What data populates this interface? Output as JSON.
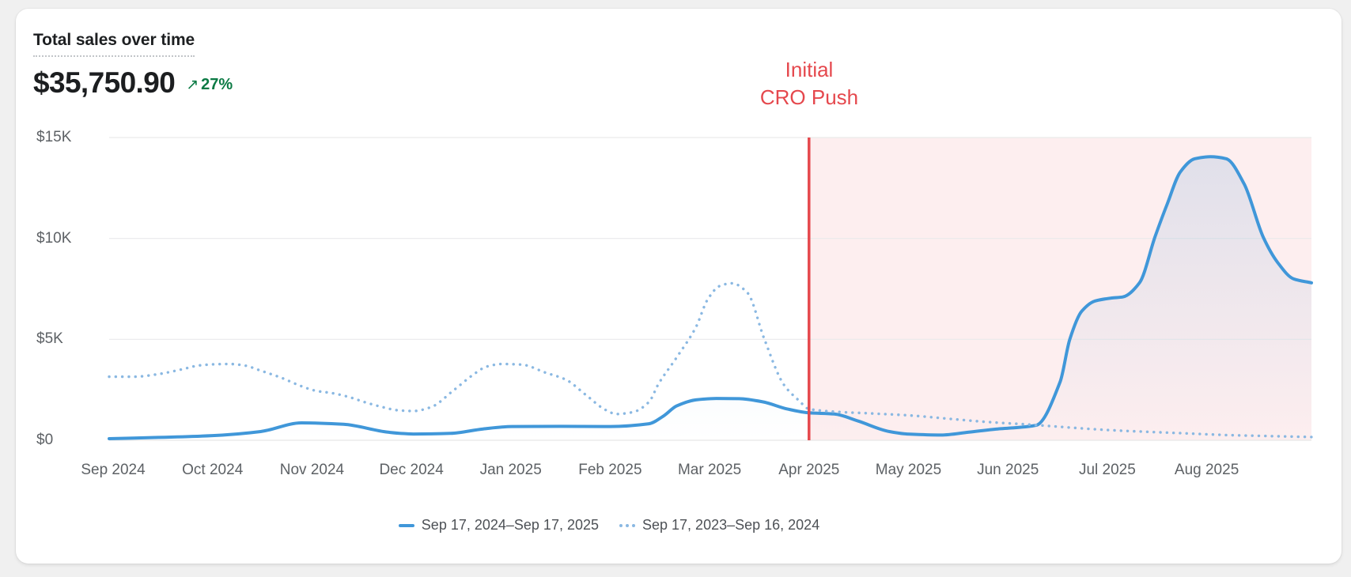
{
  "page": {
    "background_color": "#f0f0f0",
    "card_color": "#ffffff"
  },
  "header": {
    "title": "Total sales over time",
    "total_value": "$35,750.90",
    "delta_arrow": "↗",
    "delta_percent": "27%",
    "delta_color": "#0b7a44"
  },
  "chart_data": {
    "type": "line",
    "title": "Total sales over time",
    "grid": "horizontal",
    "legend_position": "bottom-center",
    "y_axis": {
      "min": 0,
      "max": 15000,
      "ticks": [
        {
          "value": 0,
          "label": "$0"
        },
        {
          "value": 5000,
          "label": "$5K"
        },
        {
          "value": 10000,
          "label": "$10K"
        },
        {
          "value": 15000,
          "label": "$15K"
        }
      ]
    },
    "x_axis": {
      "labels": [
        {
          "t": 0.0033,
          "label": "Sep 2024"
        },
        {
          "t": 0.086,
          "label": "Oct 2024"
        },
        {
          "t": 0.1687,
          "label": "Nov 2024"
        },
        {
          "t": 0.2514,
          "label": "Dec 2024"
        },
        {
          "t": 0.334,
          "label": "Jan 2025"
        },
        {
          "t": 0.4167,
          "label": "Feb 2025"
        },
        {
          "t": 0.4994,
          "label": "Mar 2025"
        },
        {
          "t": 0.5821,
          "label": "Apr 2025"
        },
        {
          "t": 0.6648,
          "label": "May 2025"
        },
        {
          "t": 0.7475,
          "label": "Jun 2025"
        },
        {
          "t": 0.8302,
          "label": "Jul 2025"
        },
        {
          "t": 0.9129,
          "label": "Aug 2025"
        }
      ]
    },
    "series": [
      {
        "name": "Sep 17, 2024–Sep 17, 2025",
        "style": "solid",
        "color": "#4097d9",
        "area_gradient": true,
        "points": [
          [
            0.0,
            80
          ],
          [
            0.041,
            140
          ],
          [
            0.086,
            230
          ],
          [
            0.126,
            430
          ],
          [
            0.16,
            860
          ],
          [
            0.195,
            790
          ],
          [
            0.232,
            400
          ],
          [
            0.253,
            310
          ],
          [
            0.284,
            340
          ],
          [
            0.311,
            560
          ],
          [
            0.335,
            680
          ],
          [
            0.376,
            690
          ],
          [
            0.417,
            680
          ],
          [
            0.449,
            820
          ],
          [
            0.461,
            1200
          ],
          [
            0.472,
            1700
          ],
          [
            0.488,
            2000
          ],
          [
            0.505,
            2070
          ],
          [
            0.524,
            2060
          ],
          [
            0.544,
            1900
          ],
          [
            0.564,
            1550
          ],
          [
            0.582,
            1360
          ],
          [
            0.603,
            1300
          ],
          [
            0.623,
            950
          ],
          [
            0.649,
            430
          ],
          [
            0.666,
            300
          ],
          [
            0.692,
            260
          ],
          [
            0.715,
            400
          ],
          [
            0.739,
            560
          ],
          [
            0.751,
            610
          ],
          [
            0.771,
            740
          ],
          [
            0.791,
            2900
          ],
          [
            0.799,
            5000
          ],
          [
            0.809,
            6400
          ],
          [
            0.82,
            6900
          ],
          [
            0.834,
            7050
          ],
          [
            0.843,
            7100
          ],
          [
            0.857,
            7800
          ],
          [
            0.87,
            10100
          ],
          [
            0.88,
            11700
          ],
          [
            0.891,
            13300
          ],
          [
            0.903,
            13950
          ],
          [
            0.916,
            14050
          ],
          [
            0.929,
            13950
          ],
          [
            0.944,
            12700
          ],
          [
            0.96,
            10050
          ],
          [
            0.972,
            8800
          ],
          [
            0.985,
            8000
          ],
          [
            1.0,
            7800
          ]
        ]
      },
      {
        "name": "Sep 17, 2023–Sep 16, 2024",
        "style": "dotted",
        "color": "#8ab8e2",
        "area_gradient": false,
        "points": [
          [
            0.0,
            3150
          ],
          [
            0.021,
            3150
          ],
          [
            0.041,
            3280
          ],
          [
            0.061,
            3520
          ],
          [
            0.074,
            3700
          ],
          [
            0.086,
            3760
          ],
          [
            0.1,
            3780
          ],
          [
            0.113,
            3700
          ],
          [
            0.126,
            3450
          ],
          [
            0.143,
            3100
          ],
          [
            0.159,
            2700
          ],
          [
            0.172,
            2450
          ],
          [
            0.186,
            2330
          ],
          [
            0.199,
            2150
          ],
          [
            0.212,
            1900
          ],
          [
            0.225,
            1680
          ],
          [
            0.241,
            1480
          ],
          [
            0.253,
            1450
          ],
          [
            0.268,
            1650
          ],
          [
            0.286,
            2450
          ],
          [
            0.304,
            3300
          ],
          [
            0.314,
            3650
          ],
          [
            0.327,
            3780
          ],
          [
            0.343,
            3750
          ],
          [
            0.363,
            3350
          ],
          [
            0.38,
            3000
          ],
          [
            0.396,
            2270
          ],
          [
            0.413,
            1500
          ],
          [
            0.422,
            1300
          ],
          [
            0.436,
            1400
          ],
          [
            0.449,
            1900
          ],
          [
            0.457,
            2800
          ],
          [
            0.472,
            4100
          ],
          [
            0.488,
            5600
          ],
          [
            0.498,
            7000
          ],
          [
            0.508,
            7650
          ],
          [
            0.518,
            7780
          ],
          [
            0.531,
            7300
          ],
          [
            0.545,
            5000
          ],
          [
            0.561,
            2770
          ],
          [
            0.574,
            1950
          ],
          [
            0.582,
            1550
          ],
          [
            0.6,
            1430
          ],
          [
            0.633,
            1330
          ],
          [
            0.666,
            1230
          ],
          [
            0.699,
            1060
          ],
          [
            0.732,
            900
          ],
          [
            0.765,
            780
          ],
          [
            0.797,
            640
          ],
          [
            0.83,
            510
          ],
          [
            0.863,
            420
          ],
          [
            0.896,
            340
          ],
          [
            0.929,
            260
          ],
          [
            0.962,
            210
          ],
          [
            1.0,
            160
          ]
        ]
      }
    ],
    "annotations": {
      "vline": {
        "t": 0.5821,
        "color": "#e5484d",
        "label_lines": [
          "Initial",
          "CRO Push"
        ]
      },
      "shaded_region": {
        "from_t": 0.5821,
        "to_t": 1.0,
        "color": "rgba(230,60,66,0.085)"
      }
    }
  }
}
